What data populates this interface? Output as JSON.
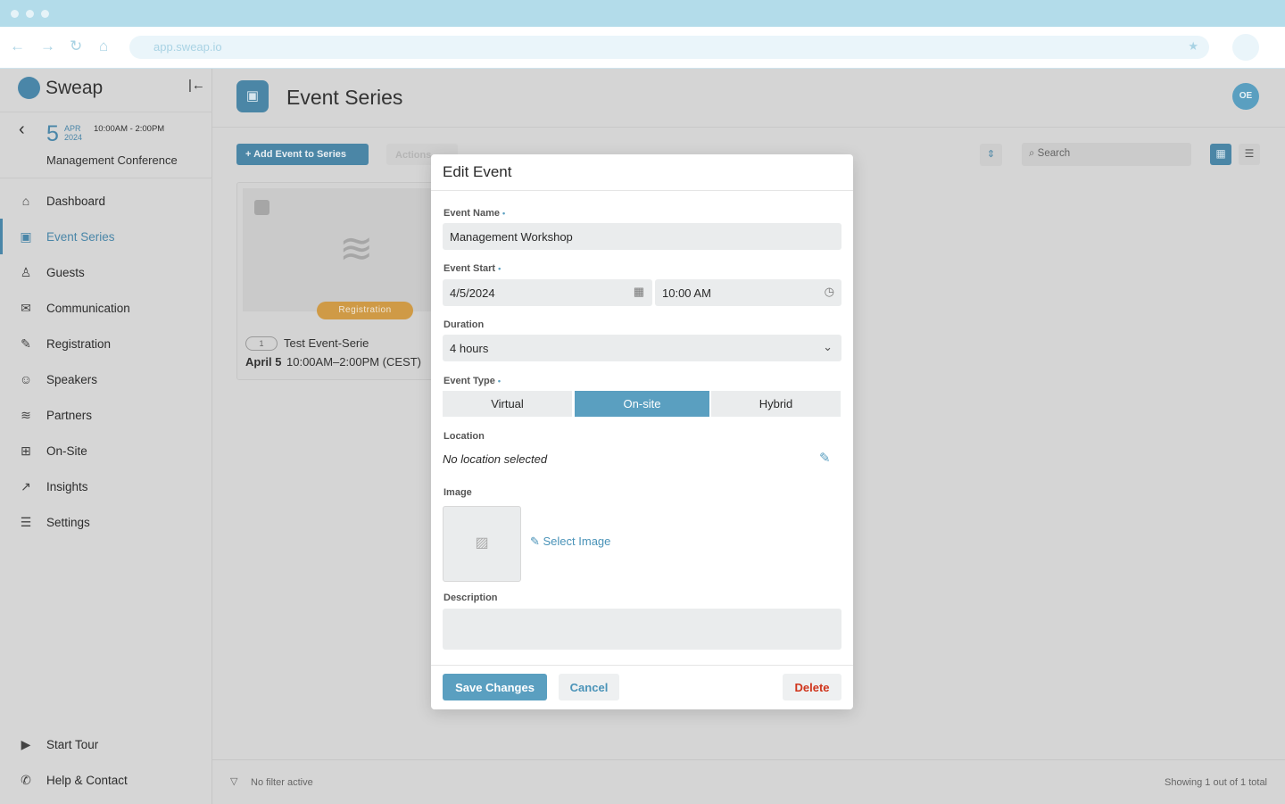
{
  "browser": {
    "url": "app.sweap.io"
  },
  "sidebar": {
    "brand": "Sweap",
    "event": {
      "day": "5",
      "month": "APR",
      "year": "2024",
      "time": "10:00AM - 2:00PM",
      "name": "Management Conference"
    },
    "items": [
      {
        "label": "Dashboard",
        "icon": "home-icon",
        "glyph": "⌂"
      },
      {
        "label": "Event Series",
        "icon": "calendar-icon",
        "glyph": "▣"
      },
      {
        "label": "Guests",
        "icon": "guests-icon",
        "glyph": "♙"
      },
      {
        "label": "Communication",
        "icon": "mail-icon",
        "glyph": "✉"
      },
      {
        "label": "Registration",
        "icon": "edit-icon",
        "glyph": "✎"
      },
      {
        "label": "Speakers",
        "icon": "speaker-icon",
        "glyph": "☺"
      },
      {
        "label": "Partners",
        "icon": "handshake-icon",
        "glyph": "≋"
      },
      {
        "label": "On-Site",
        "icon": "map-icon",
        "glyph": "⊞"
      },
      {
        "label": "Insights",
        "icon": "chart-icon",
        "glyph": "↗"
      },
      {
        "label": "Settings",
        "icon": "sliders-icon",
        "glyph": "☰"
      }
    ],
    "bottom": [
      {
        "label": "Start Tour",
        "icon": "play-icon",
        "glyph": "▶"
      },
      {
        "label": "Help & Contact",
        "icon": "chat-icon",
        "glyph": "✆"
      }
    ]
  },
  "header": {
    "title": "Event Series",
    "avatar": "OE"
  },
  "toolbar": {
    "add": "Add Event to Series",
    "actions": "Actions",
    "search_placeholder": "Search"
  },
  "card": {
    "badge": "Registration",
    "count": "1",
    "name": "Test Event-Serie",
    "date": "April 5",
    "time": "10:00AM–2:00PM (CEST)"
  },
  "footer": {
    "filter": "No filter active",
    "showing": "Showing 1 out of 1 total"
  },
  "modal": {
    "title": "Edit Event",
    "name_label": "Event Name",
    "name_value": "Management Workshop",
    "start_label": "Event Start",
    "date_value": "4/5/2024",
    "time_value": "10:00 AM",
    "duration_label": "Duration",
    "duration_value": "4 hours",
    "type_label": "Event Type",
    "types": [
      "Virtual",
      "On-site",
      "Hybrid"
    ],
    "selected_type": "On-site",
    "location_label": "Location",
    "location_value": "No location selected",
    "image_label": "Image",
    "select_image": "Select Image",
    "description_label": "Description",
    "description_value": "",
    "save": "Save Changes",
    "cancel": "Cancel",
    "delete": "Delete"
  },
  "colors": {
    "accent": "#5a9fc0",
    "delete": "#d0351c",
    "badge": "#cf9a46"
  }
}
